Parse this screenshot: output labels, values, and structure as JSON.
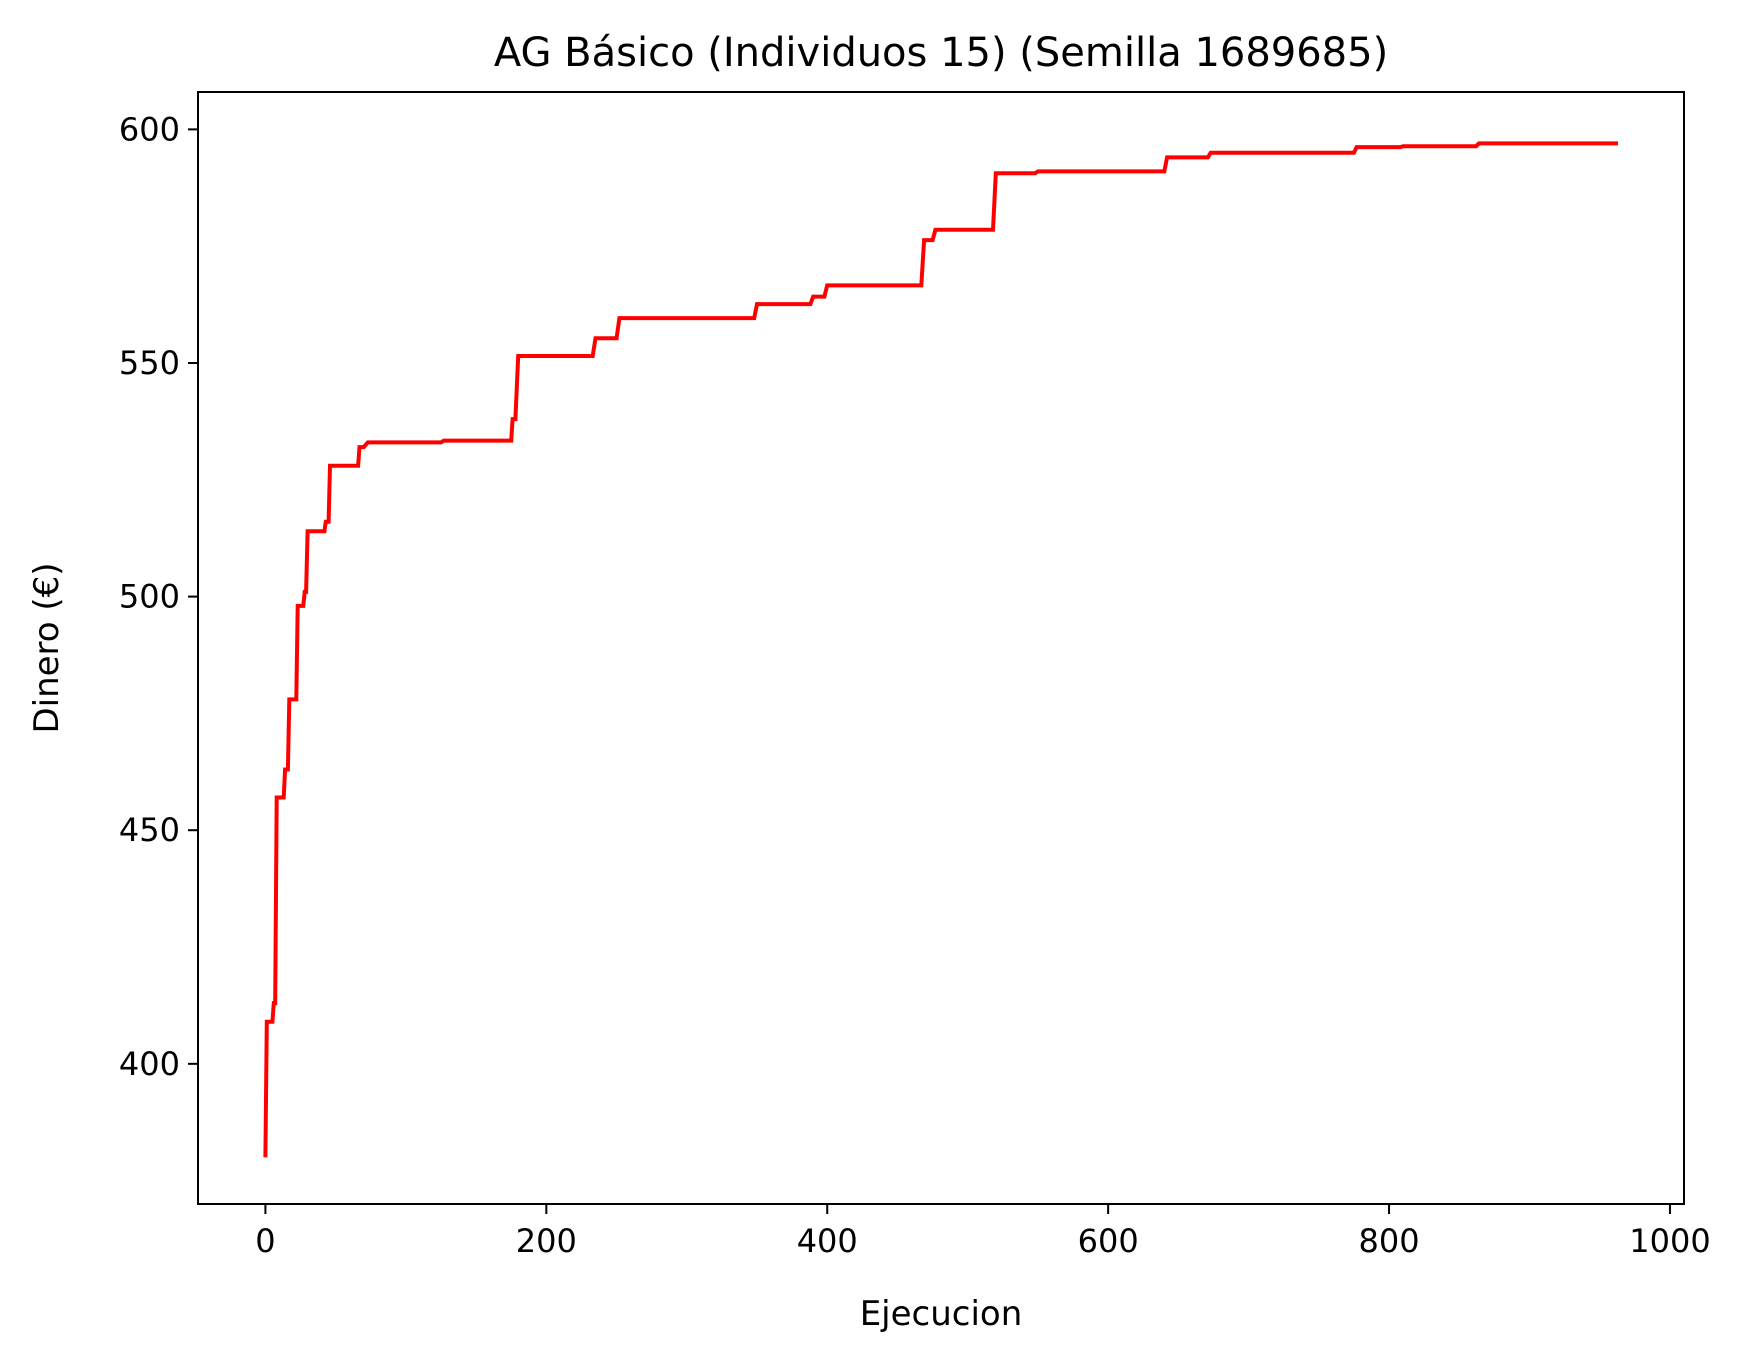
{
  "chart_data": {
    "type": "line",
    "title": "AG Básico (Individuos 15) (Semilla 1689685)",
    "xlabel": "Ejecucion",
    "ylabel": "Dinero (€)",
    "xlim": [
      -48,
      1010
    ],
    "ylim": [
      370,
      608
    ],
    "xticks": [
      0,
      200,
      400,
      600,
      800,
      1000
    ],
    "yticks": [
      400,
      450,
      500,
      550,
      600
    ],
    "grid": false,
    "legend": "none",
    "series": [
      {
        "color": "#ff0000",
        "points": [
          [
            0,
            380
          ],
          [
            1,
            409
          ],
          [
            5,
            409
          ],
          [
            6,
            413
          ],
          [
            7,
            413
          ],
          [
            8,
            457
          ],
          [
            13,
            457
          ],
          [
            14,
            463
          ],
          [
            16,
            463
          ],
          [
            17,
            478
          ],
          [
            22,
            478
          ],
          [
            23,
            498
          ],
          [
            27,
            498
          ],
          [
            28,
            501
          ],
          [
            29,
            501
          ],
          [
            30,
            514
          ],
          [
            42,
            514
          ],
          [
            43,
            516
          ],
          [
            45,
            516
          ],
          [
            46,
            528
          ],
          [
            66,
            528
          ],
          [
            67,
            532
          ],
          [
            70,
            532
          ],
          [
            73,
            533
          ],
          [
            125,
            533
          ],
          [
            127,
            533.4
          ],
          [
            175,
            533.4
          ],
          [
            176,
            538
          ],
          [
            178,
            538
          ],
          [
            180,
            551.5
          ],
          [
            233,
            551.5
          ],
          [
            235,
            555.3
          ],
          [
            250,
            555.3
          ],
          [
            252,
            559.6
          ],
          [
            348,
            559.6
          ],
          [
            350,
            562.6
          ],
          [
            388,
            562.6
          ],
          [
            390,
            564.2
          ],
          [
            398,
            564.2
          ],
          [
            400,
            566.6
          ],
          [
            467,
            566.6
          ],
          [
            469,
            576.3
          ],
          [
            475,
            576.3
          ],
          [
            477,
            578.5
          ],
          [
            518,
            578.5
          ],
          [
            520,
            590.6
          ],
          [
            548,
            590.6
          ],
          [
            550,
            591
          ],
          [
            640,
            591
          ],
          [
            642,
            594
          ],
          [
            671,
            594
          ],
          [
            673,
            595
          ],
          [
            775,
            595
          ],
          [
            777,
            596.2
          ],
          [
            808,
            596.2
          ],
          [
            810,
            596.4
          ],
          [
            862,
            596.4
          ],
          [
            864,
            597
          ],
          [
            963,
            597
          ]
        ]
      }
    ]
  }
}
